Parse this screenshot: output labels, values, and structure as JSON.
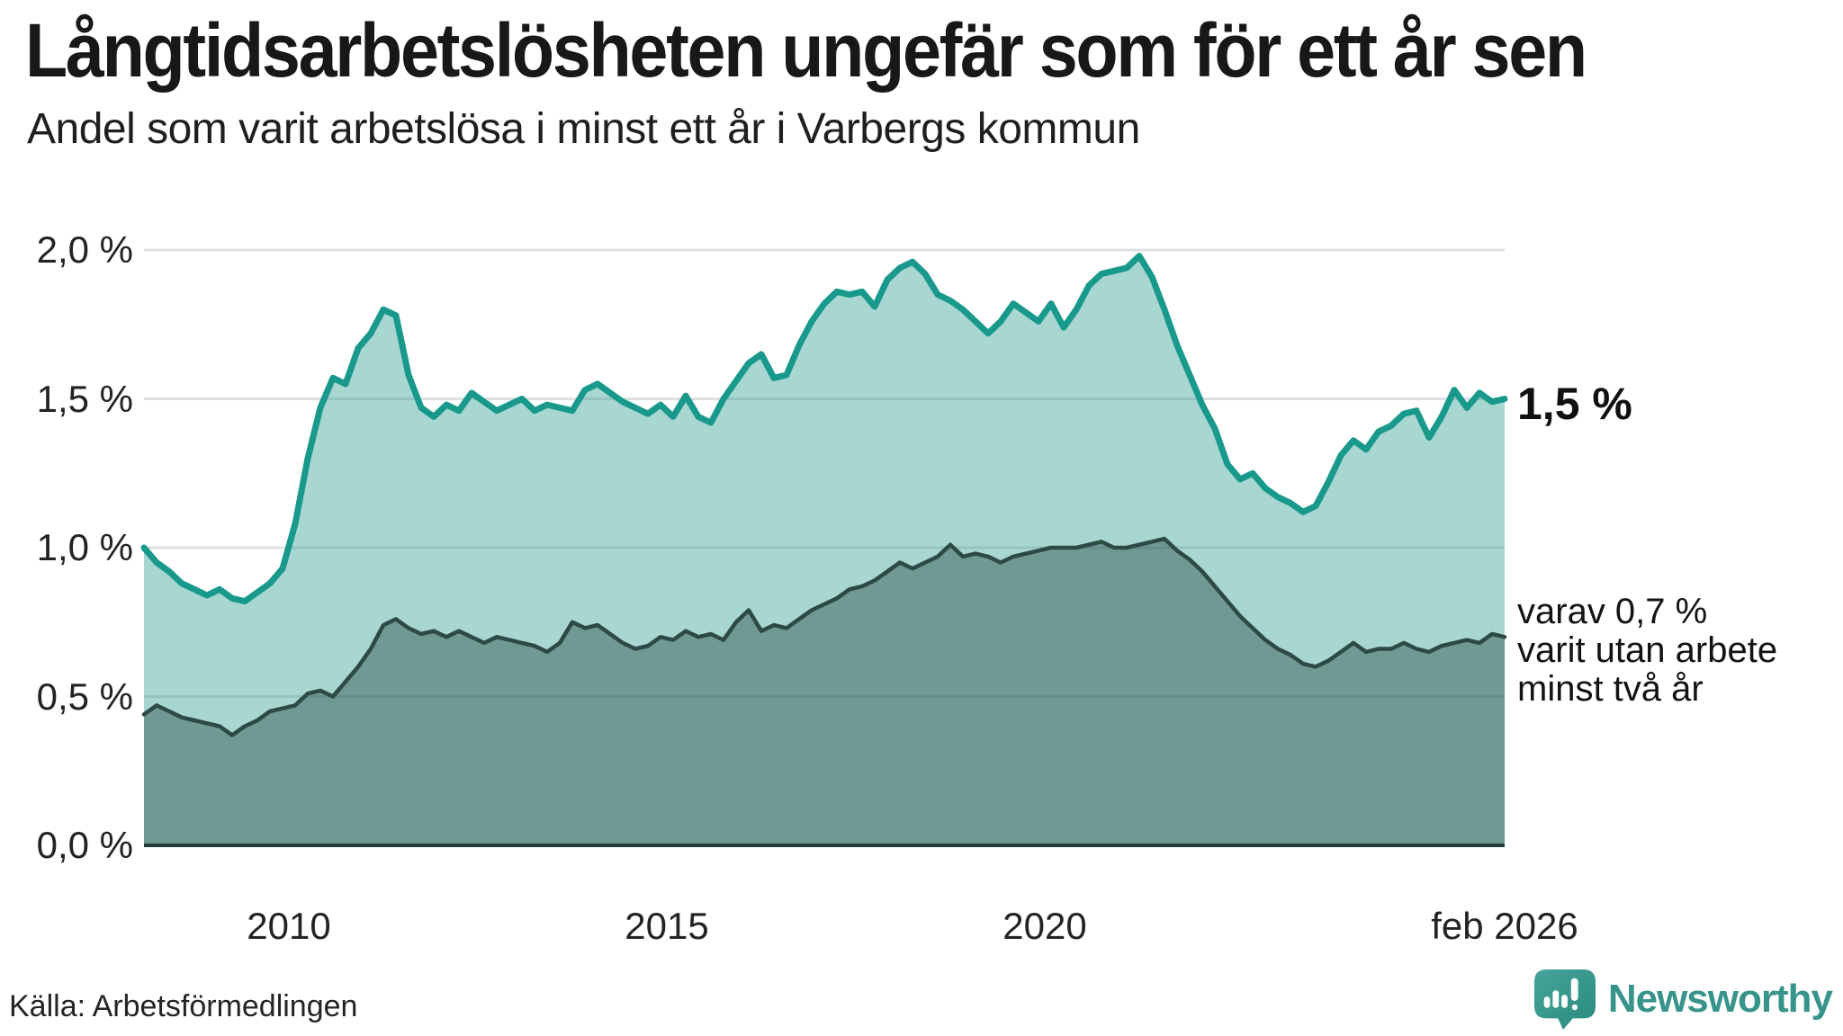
{
  "header": {
    "title": "Långtidsarbetslösheten ungefär som för ett år sen",
    "subtitle": "Andel som varit arbetslösa i minst ett år i Varbergs kommun"
  },
  "annotations": {
    "end_value_label": "1,5 %",
    "note": "varav 0,7 %\nvarit utan arbete\nminst två år"
  },
  "source": {
    "label": "Källa: Arbetsförmedlingen"
  },
  "branding": {
    "logo_text": "Newsworthy",
    "logo_color": "#38948a"
  },
  "chart_data": {
    "type": "area",
    "title": "Långtidsarbetslösheten ungefär som för ett år sen",
    "subtitle": "Andel som varit arbetslösa i minst ett år i Varbergs kommun",
    "xlabel": "",
    "ylabel": "",
    "x_start": "2008-02",
    "x_end": "2026-02",
    "points_interval_months": 2,
    "ylim": [
      0,
      2.0
    ],
    "grid": "horizontal",
    "grid_color": "#dfe0e4",
    "baseline_color": "#21403a",
    "xticks": [
      {
        "label": "2010",
        "year": 2010.0
      },
      {
        "label": "2015",
        "year": 2015.0
      },
      {
        "label": "2020",
        "year": 2020.0
      },
      {
        "label": "feb 2026",
        "year": 2026.083
      }
    ],
    "yticks": [
      {
        "label": "0,0 %",
        "value": 0.0
      },
      {
        "label": "0,5 %",
        "value": 0.5
      },
      {
        "label": "1,0 %",
        "value": 1.0
      },
      {
        "label": "1,5 %",
        "value": 1.5
      },
      {
        "label": "2,0 %",
        "value": 2.0
      }
    ],
    "series": [
      {
        "name": "Andel arbetslösa minst ett år",
        "end_label": "1,5 %",
        "color": "#18998b",
        "fill": "rgba(27,151,137,0.38)",
        "line_width": 7,
        "values": [
          1.0,
          0.95,
          0.92,
          0.88,
          0.86,
          0.84,
          0.86,
          0.83,
          0.82,
          0.85,
          0.88,
          0.93,
          1.08,
          1.3,
          1.47,
          1.57,
          1.55,
          1.67,
          1.72,
          1.8,
          1.78,
          1.58,
          1.47,
          1.44,
          1.48,
          1.46,
          1.52,
          1.49,
          1.46,
          1.48,
          1.5,
          1.46,
          1.48,
          1.47,
          1.46,
          1.53,
          1.55,
          1.52,
          1.49,
          1.47,
          1.45,
          1.48,
          1.44,
          1.51,
          1.44,
          1.42,
          1.5,
          1.56,
          1.62,
          1.65,
          1.57,
          1.58,
          1.68,
          1.76,
          1.82,
          1.86,
          1.85,
          1.86,
          1.81,
          1.9,
          1.94,
          1.96,
          1.92,
          1.85,
          1.83,
          1.8,
          1.76,
          1.72,
          1.76,
          1.82,
          1.79,
          1.76,
          1.82,
          1.74,
          1.8,
          1.88,
          1.92,
          1.93,
          1.94,
          1.98,
          1.91,
          1.8,
          1.68,
          1.58,
          1.48,
          1.4,
          1.28,
          1.23,
          1.25,
          1.2,
          1.17,
          1.15,
          1.12,
          1.14,
          1.22,
          1.31,
          1.36,
          1.33,
          1.39,
          1.41,
          1.45,
          1.46,
          1.37,
          1.44,
          1.53,
          1.47,
          1.52,
          1.49,
          1.5
        ]
      },
      {
        "name": "varav arbetslösa minst två år",
        "end_label": "0,7 %",
        "color": "#2d4a44",
        "fill": "rgba(30,60,54,0.40)",
        "line_width": 4.5,
        "values": [
          0.44,
          0.47,
          0.45,
          0.43,
          0.42,
          0.41,
          0.4,
          0.37,
          0.4,
          0.42,
          0.45,
          0.46,
          0.47,
          0.51,
          0.52,
          0.5,
          0.55,
          0.6,
          0.66,
          0.74,
          0.76,
          0.73,
          0.71,
          0.72,
          0.7,
          0.72,
          0.7,
          0.68,
          0.7,
          0.69,
          0.68,
          0.67,
          0.65,
          0.68,
          0.75,
          0.73,
          0.74,
          0.71,
          0.68,
          0.66,
          0.67,
          0.7,
          0.69,
          0.72,
          0.7,
          0.71,
          0.69,
          0.75,
          0.79,
          0.72,
          0.74,
          0.73,
          0.76,
          0.79,
          0.81,
          0.83,
          0.86,
          0.87,
          0.89,
          0.92,
          0.95,
          0.93,
          0.95,
          0.97,
          1.01,
          0.97,
          0.98,
          0.97,
          0.95,
          0.97,
          0.98,
          0.99,
          1.0,
          1.0,
          1.0,
          1.01,
          1.02,
          1.0,
          1.0,
          1.01,
          1.02,
          1.03,
          0.99,
          0.96,
          0.92,
          0.87,
          0.82,
          0.77,
          0.73,
          0.69,
          0.66,
          0.64,
          0.61,
          0.6,
          0.62,
          0.65,
          0.68,
          0.65,
          0.66,
          0.66,
          0.68,
          0.66,
          0.65,
          0.67,
          0.68,
          0.69,
          0.68,
          0.71,
          0.7
        ]
      }
    ]
  }
}
